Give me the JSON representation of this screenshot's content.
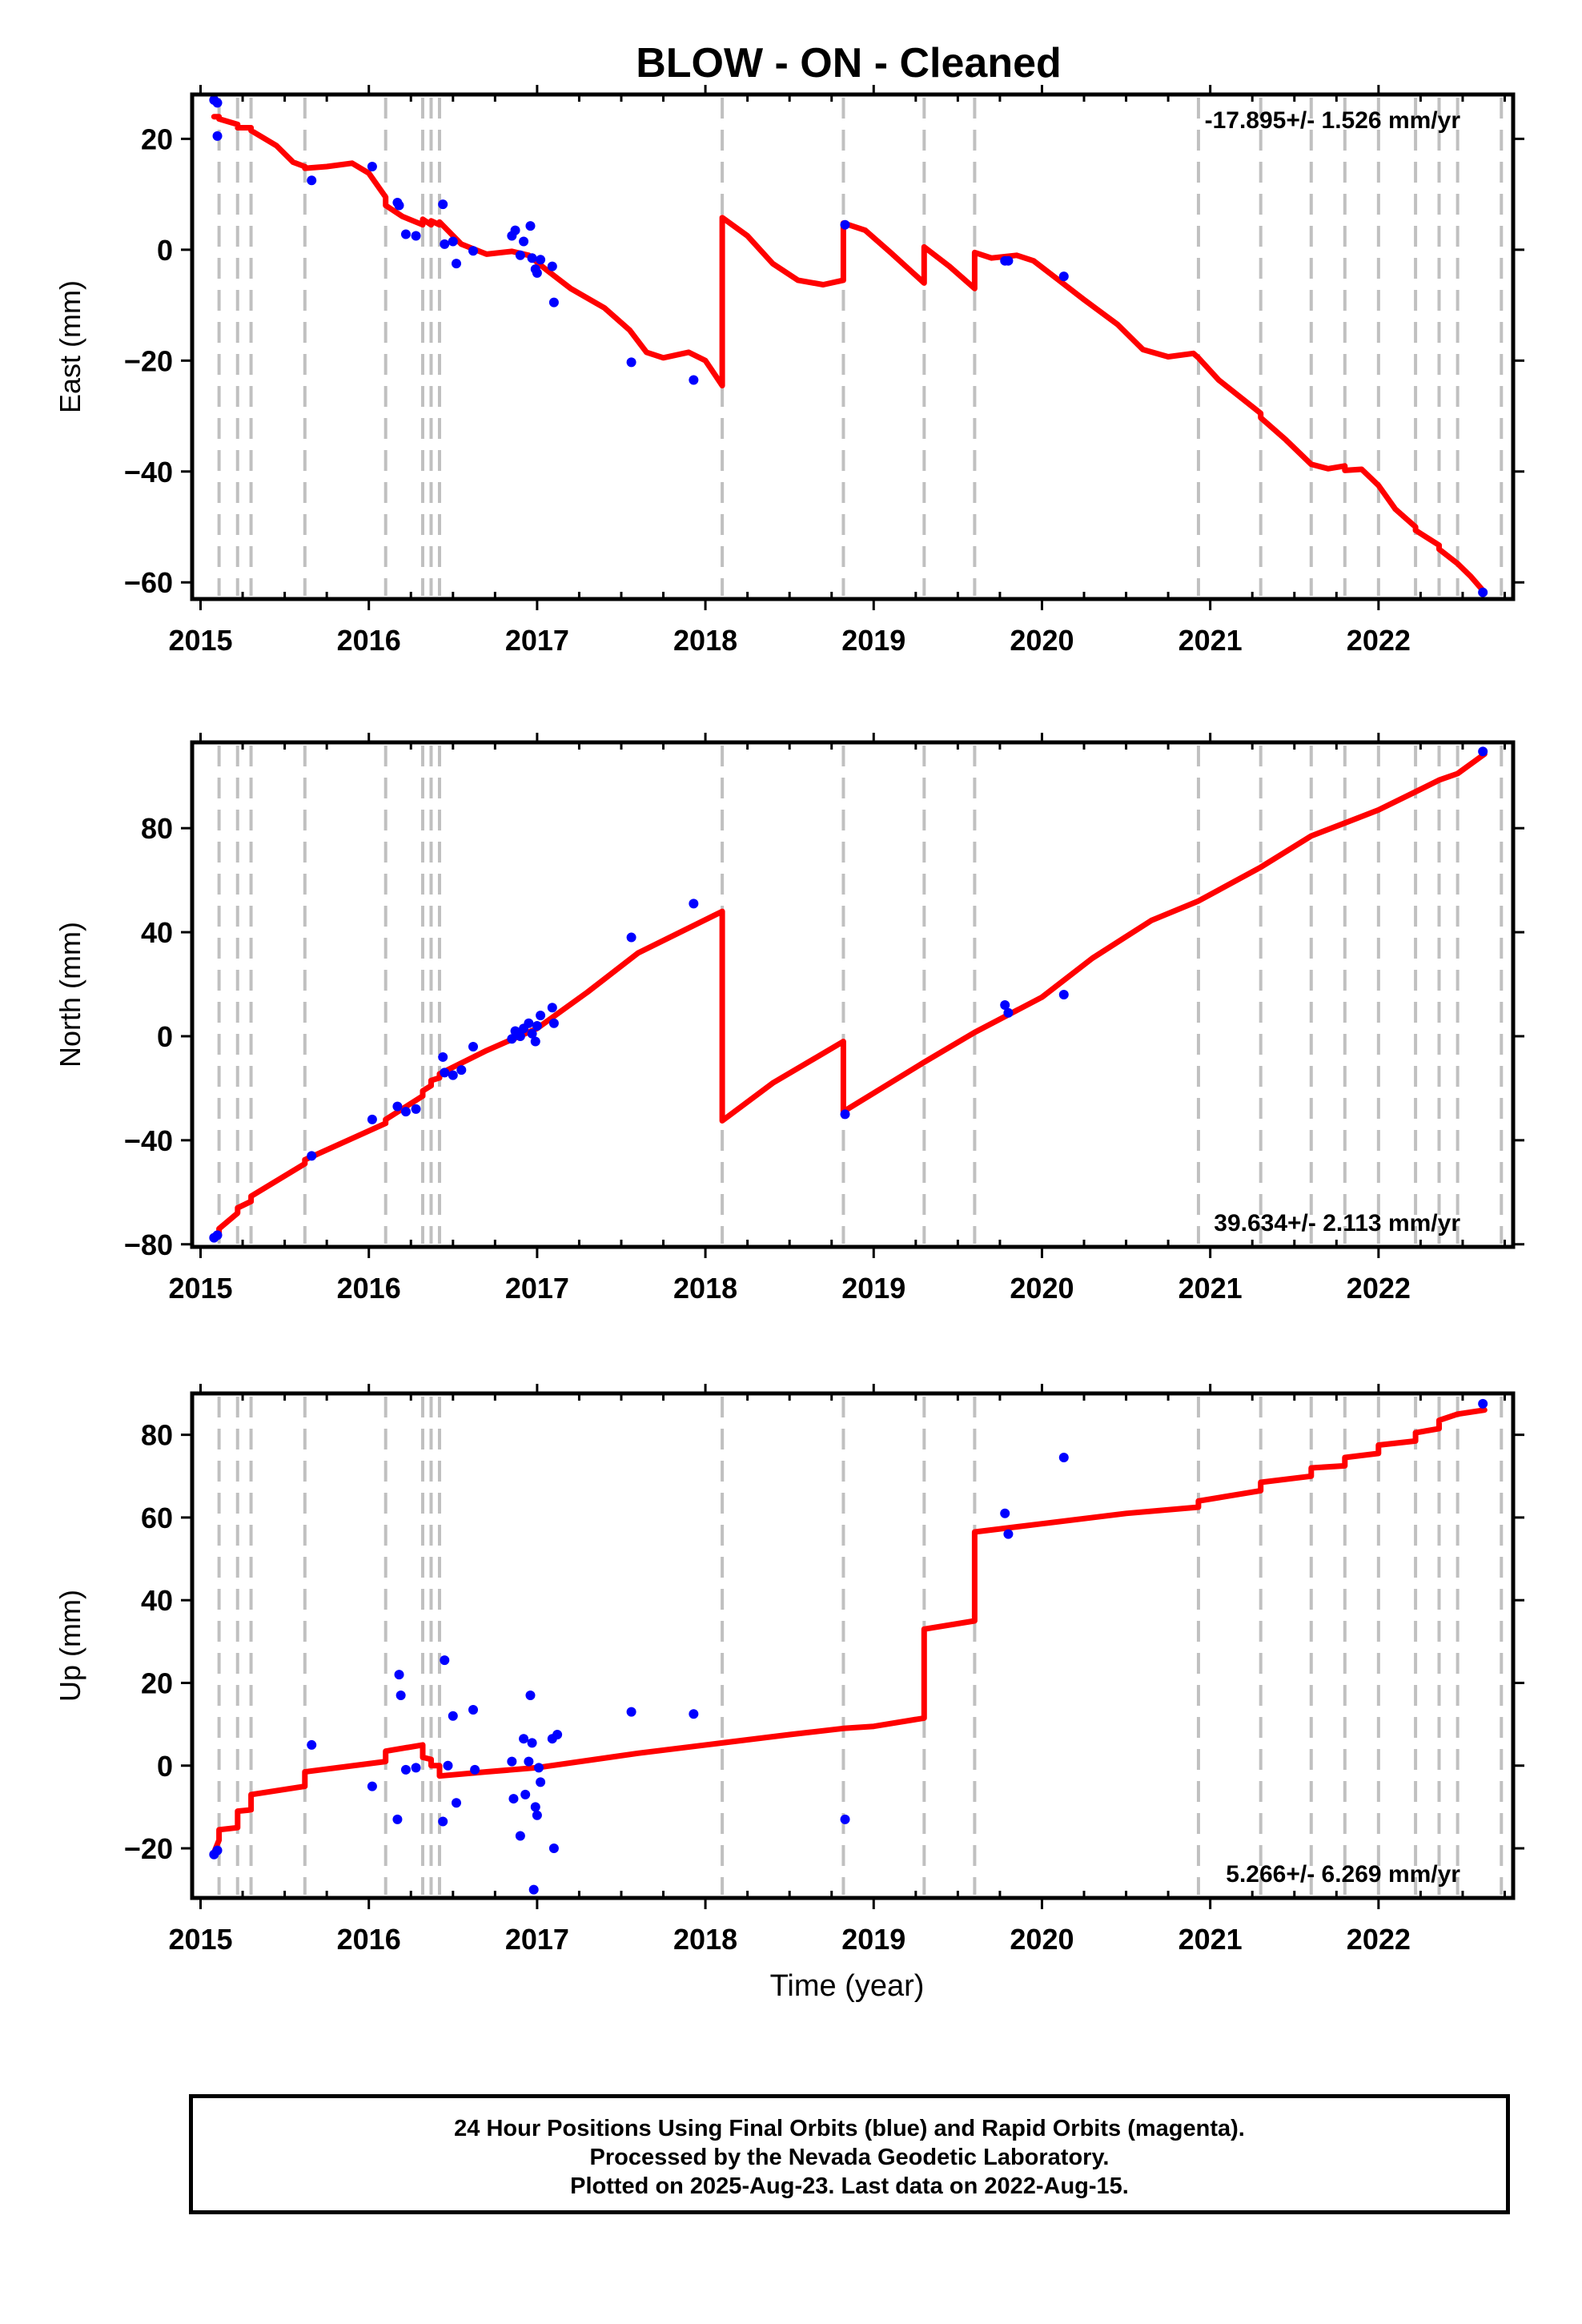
{
  "title": "BLOW  - ON - Cleaned",
  "xlabel": "Time (year)",
  "caption": {
    "line1": "24 Hour Positions Using Final Orbits (blue) and Rapid Orbits (magenta).",
    "line2": "Processed by the Nevada Geodetic Laboratory.",
    "line3": "Plotted on 2025-Aug-23. Last data on 2022-Aug-15."
  },
  "colors": {
    "data_points": "#0000ff",
    "model_line": "#ff0000",
    "event_lines": "#c0c0c0"
  },
  "chart_data": [
    {
      "type": "scatter",
      "component": "east",
      "ylabel": "East (mm)",
      "rate_label": "-17.895+/- 1.526 mm/yr",
      "rate_position": "top-right",
      "xlim": [
        2014.95,
        2022.8
      ],
      "ylim": [
        -63,
        28
      ],
      "xticks": [
        2015,
        2016,
        2017,
        2018,
        2019,
        2020,
        2021,
        2022
      ],
      "xtick_labels": [
        "2015",
        "2016",
        "2017",
        "2018",
        "2019",
        "2020",
        "2021",
        "2022"
      ],
      "yticks": [
        -60,
        -40,
        -20,
        0,
        20
      ],
      "ytick_labels": [
        "−60",
        "−40",
        "−20",
        "0",
        "20"
      ],
      "event_lines": [
        2015.11,
        2015.22,
        2015.3,
        2015.62,
        2016.1,
        2016.32,
        2016.37,
        2016.42,
        2018.1,
        2018.82,
        2019.3,
        2019.6,
        2020.93,
        2021.3,
        2021.6,
        2021.8,
        2022.0,
        2022.22,
        2022.36,
        2022.47,
        2022.73
      ],
      "points": [
        [
          2015.08,
          27
        ],
        [
          2015.1,
          26.5
        ],
        [
          2015.1,
          20.5
        ],
        [
          2015.66,
          12.5
        ],
        [
          2016.02,
          15
        ],
        [
          2016.17,
          8.5
        ],
        [
          2016.18,
          8
        ],
        [
          2016.22,
          2.8
        ],
        [
          2016.28,
          2.5
        ],
        [
          2016.44,
          8.2
        ],
        [
          2016.45,
          1
        ],
        [
          2016.5,
          1.5
        ],
        [
          2016.52,
          -2.5
        ],
        [
          2016.62,
          -0.2
        ],
        [
          2016.85,
          2.5
        ],
        [
          2016.87,
          3.5
        ],
        [
          2016.9,
          -1
        ],
        [
          2016.92,
          1.5
        ],
        [
          2016.96,
          4.3
        ],
        [
          2016.97,
          -1.5
        ],
        [
          2016.99,
          -3.5
        ],
        [
          2017.0,
          -4.2
        ],
        [
          2017.02,
          -1.8
        ],
        [
          2017.09,
          -3
        ],
        [
          2017.1,
          -9.5
        ],
        [
          2017.56,
          -20.3
        ],
        [
          2017.93,
          -23.5
        ],
        [
          2018.83,
          4.5
        ],
        [
          2019.78,
          -2
        ],
        [
          2019.8,
          -2
        ],
        [
          2020.13,
          -4.8
        ],
        [
          2022.62,
          -61.8
        ]
      ],
      "model": [
        [
          2015.08,
          24
        ],
        [
          2015.11,
          24
        ],
        [
          2015.11,
          23.6
        ],
        [
          2015.22,
          22.6
        ],
        [
          2015.22,
          22
        ],
        [
          2015.3,
          22
        ],
        [
          2015.3,
          21.5
        ],
        [
          2015.45,
          18.8
        ],
        [
          2015.55,
          15.8
        ],
        [
          2015.62,
          15
        ],
        [
          2015.62,
          14.7
        ],
        [
          2015.75,
          15
        ],
        [
          2015.9,
          15.6
        ],
        [
          2016.0,
          13.8
        ],
        [
          2016.1,
          9.5
        ],
        [
          2016.1,
          8
        ],
        [
          2016.2,
          6
        ],
        [
          2016.32,
          4.5
        ],
        [
          2016.32,
          5.5
        ],
        [
          2016.37,
          4.5
        ],
        [
          2016.37,
          5.2
        ],
        [
          2016.42,
          4.5
        ],
        [
          2016.42,
          5
        ],
        [
          2016.55,
          1
        ],
        [
          2016.7,
          -0.8
        ],
        [
          2016.85,
          -0.3
        ],
        [
          2016.95,
          -1
        ],
        [
          2017.05,
          -3.5
        ],
        [
          2017.2,
          -7
        ],
        [
          2017.4,
          -10.5
        ],
        [
          2017.55,
          -14.5
        ],
        [
          2017.65,
          -18.5
        ],
        [
          2017.75,
          -19.5
        ],
        [
          2017.9,
          -18.5
        ],
        [
          2018.0,
          -20
        ],
        [
          2018.1,
          -24.5
        ],
        [
          2018.1,
          5.8
        ],
        [
          2018.25,
          2.5
        ],
        [
          2018.4,
          -2.5
        ],
        [
          2018.55,
          -5.5
        ],
        [
          2018.7,
          -6.3
        ],
        [
          2018.82,
          -5.5
        ],
        [
          2018.82,
          4.8
        ],
        [
          2018.95,
          3.5
        ],
        [
          2019.1,
          -0.5
        ],
        [
          2019.3,
          -6
        ],
        [
          2019.3,
          0.5
        ],
        [
          2019.45,
          -3
        ],
        [
          2019.6,
          -7
        ],
        [
          2019.6,
          -0.5
        ],
        [
          2019.7,
          -1.5
        ],
        [
          2019.85,
          -1
        ],
        [
          2019.95,
          -2
        ],
        [
          2020.1,
          -5.5
        ],
        [
          2020.25,
          -9
        ],
        [
          2020.45,
          -13.5
        ],
        [
          2020.6,
          -18
        ],
        [
          2020.75,
          -19.3
        ],
        [
          2020.9,
          -18.7
        ],
        [
          2020.93,
          -19.5
        ],
        [
          2021.05,
          -23.5
        ],
        [
          2021.3,
          -29.5
        ],
        [
          2021.3,
          -30.3
        ],
        [
          2021.45,
          -34.3
        ],
        [
          2021.6,
          -38.7
        ],
        [
          2021.7,
          -39.5
        ],
        [
          2021.8,
          -39
        ],
        [
          2021.8,
          -39.8
        ],
        [
          2021.9,
          -39.6
        ],
        [
          2022.0,
          -42.5
        ],
        [
          2022.1,
          -46.8
        ],
        [
          2022.22,
          -50
        ],
        [
          2022.22,
          -50.6
        ],
        [
          2022.36,
          -53.3
        ],
        [
          2022.36,
          -54
        ],
        [
          2022.47,
          -56.6
        ],
        [
          2022.55,
          -59
        ],
        [
          2022.63,
          -61.8
        ]
      ]
    },
    {
      "type": "scatter",
      "component": "north",
      "ylabel": "North (mm)",
      "rate_label": "39.634+/- 2.113 mm/yr",
      "rate_position": "bottom-right",
      "xlim": [
        2014.95,
        2022.8
      ],
      "ylim": [
        -81,
        113
      ],
      "xticks": [
        2015,
        2016,
        2017,
        2018,
        2019,
        2020,
        2021,
        2022
      ],
      "xtick_labels": [
        "2015",
        "2016",
        "2017",
        "2018",
        "2019",
        "2020",
        "2021",
        "2022"
      ],
      "yticks": [
        -80,
        -40,
        0,
        40,
        80
      ],
      "ytick_labels": [
        "−80",
        "−40",
        "0",
        "40",
        "80"
      ],
      "event_lines": [
        2015.11,
        2015.22,
        2015.3,
        2015.62,
        2016.1,
        2016.32,
        2016.37,
        2016.42,
        2018.1,
        2018.82,
        2019.3,
        2019.6,
        2020.93,
        2021.3,
        2021.6,
        2021.8,
        2022.0,
        2022.22,
        2022.36,
        2022.47,
        2022.73
      ],
      "points": [
        [
          2015.08,
          -77.5
        ],
        [
          2015.1,
          -76.5
        ],
        [
          2015.66,
          -46
        ],
        [
          2016.02,
          -32
        ],
        [
          2016.17,
          -27
        ],
        [
          2016.22,
          -29
        ],
        [
          2016.28,
          -28
        ],
        [
          2016.44,
          -8
        ],
        [
          2016.45,
          -14
        ],
        [
          2016.5,
          -15
        ],
        [
          2016.55,
          -13
        ],
        [
          2016.62,
          -4
        ],
        [
          2016.85,
          -1
        ],
        [
          2016.87,
          2
        ],
        [
          2016.9,
          0
        ],
        [
          2016.92,
          3
        ],
        [
          2016.95,
          5
        ],
        [
          2016.97,
          1
        ],
        [
          2016.99,
          -2
        ],
        [
          2017.0,
          4
        ],
        [
          2017.02,
          8
        ],
        [
          2017.09,
          11
        ],
        [
          2017.1,
          5
        ],
        [
          2017.56,
          38
        ],
        [
          2017.93,
          51
        ],
        [
          2018.83,
          -30
        ],
        [
          2019.78,
          12
        ],
        [
          2019.8,
          9
        ],
        [
          2020.13,
          16
        ],
        [
          2022.62,
          109.5
        ]
      ],
      "model": [
        [
          2015.08,
          -77
        ],
        [
          2015.11,
          -76
        ],
        [
          2015.11,
          -74
        ],
        [
          2015.22,
          -68
        ],
        [
          2015.22,
          -66
        ],
        [
          2015.3,
          -63.5
        ],
        [
          2015.3,
          -61.5
        ],
        [
          2015.62,
          -49
        ],
        [
          2015.62,
          -47.5
        ],
        [
          2016.1,
          -33.5
        ],
        [
          2016.1,
          -32
        ],
        [
          2016.32,
          -23
        ],
        [
          2016.32,
          -21
        ],
        [
          2016.37,
          -19
        ],
        [
          2016.37,
          -17
        ],
        [
          2016.42,
          -16
        ],
        [
          2016.42,
          -14.5
        ],
        [
          2016.7,
          -5.5
        ],
        [
          2017.0,
          3
        ],
        [
          2017.3,
          17
        ],
        [
          2017.6,
          32
        ],
        [
          2018.1,
          48
        ],
        [
          2018.1,
          -32.5
        ],
        [
          2018.4,
          -18
        ],
        [
          2018.82,
          -2
        ],
        [
          2018.82,
          -29
        ],
        [
          2019.3,
          -10
        ],
        [
          2019.6,
          1.5
        ],
        [
          2020.0,
          15
        ],
        [
          2020.3,
          30
        ],
        [
          2020.65,
          44.5
        ],
        [
          2020.93,
          52
        ],
        [
          2021.3,
          65
        ],
        [
          2021.6,
          77
        ],
        [
          2021.8,
          82
        ],
        [
          2022.0,
          87
        ],
        [
          2022.22,
          94
        ],
        [
          2022.36,
          98.5
        ],
        [
          2022.47,
          101
        ],
        [
          2022.63,
          108.5
        ]
      ]
    },
    {
      "type": "scatter",
      "component": "up",
      "ylabel": "Up (mm)",
      "rate_label": "5.266+/- 6.269 mm/yr",
      "rate_position": "bottom-right",
      "xlim": [
        2014.95,
        2022.8
      ],
      "ylim": [
        -32,
        90
      ],
      "xticks": [
        2015,
        2016,
        2017,
        2018,
        2019,
        2020,
        2021,
        2022
      ],
      "xtick_labels": [
        "2015",
        "2016",
        "2017",
        "2018",
        "2019",
        "2020",
        "2021",
        "2022"
      ],
      "yticks": [
        -20,
        0,
        20,
        40,
        60,
        80
      ],
      "ytick_labels": [
        "−20",
        "0",
        "20",
        "40",
        "60",
        "80"
      ],
      "event_lines": [
        2015.11,
        2015.22,
        2015.3,
        2015.62,
        2016.1,
        2016.32,
        2016.37,
        2016.42,
        2018.1,
        2018.82,
        2019.3,
        2019.6,
        2020.93,
        2021.3,
        2021.6,
        2021.8,
        2022.0,
        2022.22,
        2022.36,
        2022.47,
        2022.73
      ],
      "points": [
        [
          2015.08,
          -21.5
        ],
        [
          2015.1,
          -20.5
        ],
        [
          2015.66,
          5
        ],
        [
          2016.02,
          -5
        ],
        [
          2016.17,
          -13
        ],
        [
          2016.18,
          22
        ],
        [
          2016.19,
          17
        ],
        [
          2016.22,
          -1
        ],
        [
          2016.28,
          -0.5
        ],
        [
          2016.44,
          -13.5
        ],
        [
          2016.45,
          25.5
        ],
        [
          2016.47,
          0
        ],
        [
          2016.5,
          12
        ],
        [
          2016.52,
          -9
        ],
        [
          2016.62,
          13.5
        ],
        [
          2016.63,
          -1
        ],
        [
          2016.85,
          1
        ],
        [
          2016.86,
          -8
        ],
        [
          2016.9,
          -17
        ],
        [
          2016.92,
          6.5
        ],
        [
          2016.93,
          -7
        ],
        [
          2016.95,
          1
        ],
        [
          2016.96,
          17
        ],
        [
          2016.97,
          5.5
        ],
        [
          2016.98,
          -30
        ],
        [
          2016.99,
          -10
        ],
        [
          2017.0,
          -12
        ],
        [
          2017.01,
          -0.5
        ],
        [
          2017.02,
          -4
        ],
        [
          2017.09,
          6.5
        ],
        [
          2017.1,
          -20
        ],
        [
          2017.12,
          7.5
        ],
        [
          2017.56,
          13
        ],
        [
          2017.93,
          12.5
        ],
        [
          2018.83,
          -13
        ],
        [
          2019.78,
          61
        ],
        [
          2019.8,
          56
        ],
        [
          2020.13,
          74.5
        ],
        [
          2022.62,
          87.5
        ]
      ],
      "model": [
        [
          2015.08,
          -21
        ],
        [
          2015.11,
          -18
        ],
        [
          2015.11,
          -15.5
        ],
        [
          2015.22,
          -15
        ],
        [
          2015.22,
          -11
        ],
        [
          2015.3,
          -10.7
        ],
        [
          2015.3,
          -7
        ],
        [
          2015.62,
          -5
        ],
        [
          2015.62,
          -1.5
        ],
        [
          2016.1,
          1
        ],
        [
          2016.1,
          3.5
        ],
        [
          2016.32,
          5
        ],
        [
          2016.32,
          2
        ],
        [
          2016.37,
          1.5
        ],
        [
          2016.37,
          0
        ],
        [
          2016.42,
          0
        ],
        [
          2016.42,
          -2.5
        ],
        [
          2016.7,
          -1.5
        ],
        [
          2017.0,
          -0.5
        ],
        [
          2017.6,
          3
        ],
        [
          2018.1,
          5.5
        ],
        [
          2018.5,
          7.5
        ],
        [
          2018.82,
          9
        ],
        [
          2019.0,
          9.5
        ],
        [
          2019.3,
          11.5
        ],
        [
          2019.3,
          33
        ],
        [
          2019.6,
          35
        ],
        [
          2019.6,
          56.5
        ],
        [
          2020.0,
          58.5
        ],
        [
          2020.5,
          61
        ],
        [
          2020.93,
          62.5
        ],
        [
          2020.93,
          64
        ],
        [
          2021.3,
          66.5
        ],
        [
          2021.3,
          68.5
        ],
        [
          2021.6,
          70
        ],
        [
          2021.6,
          72
        ],
        [
          2021.8,
          72.5
        ],
        [
          2021.8,
          74.5
        ],
        [
          2022.0,
          75.5
        ],
        [
          2022.0,
          77.5
        ],
        [
          2022.22,
          78.5
        ],
        [
          2022.22,
          80.5
        ],
        [
          2022.36,
          81.5
        ],
        [
          2022.36,
          83.5
        ],
        [
          2022.47,
          85
        ],
        [
          2022.63,
          86
        ]
      ]
    }
  ]
}
